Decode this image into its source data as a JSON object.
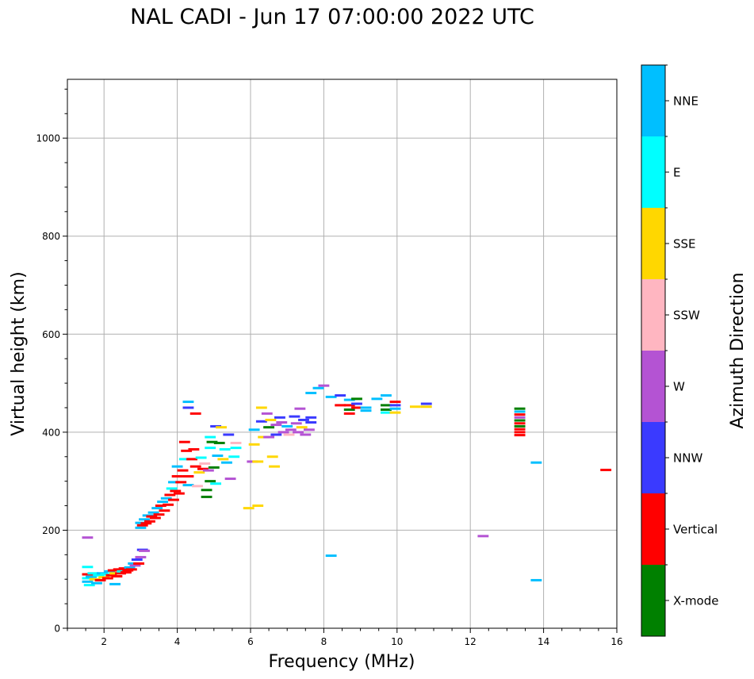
{
  "chart_data": {
    "type": "scatter",
    "title": "NAL CADI - Jun 17 07:00:00 2022 UTC",
    "xlabel": "Frequency (MHz)",
    "ylabel": "Virtual height (km)",
    "xlim": [
      1,
      16
    ],
    "ylim": [
      0,
      1120
    ],
    "xticks": [
      2,
      4,
      6,
      8,
      10,
      12,
      14,
      16
    ],
    "yticks": [
      0,
      200,
      400,
      600,
      800,
      1000
    ],
    "grid": true,
    "colorbar": {
      "label": "Azimuth Direction",
      "categories": [
        {
          "name": "X-mode",
          "color": "#008000"
        },
        {
          "name": "Vertical",
          "color": "#ff0000"
        },
        {
          "name": "NNW",
          "color": "#3a3aff"
        },
        {
          "name": "W",
          "color": "#b453d3"
        },
        {
          "name": "SSW",
          "color": "#ffb6c1"
        },
        {
          "name": "SSE",
          "color": "#ffd700"
        },
        {
          "name": "E",
          "color": "#00ffff"
        },
        {
          "name": "NNE",
          "color": "#00bfff"
        }
      ]
    },
    "points": [
      {
        "f": 1.55,
        "h": 185,
        "c": "W"
      },
      {
        "f": 1.55,
        "h": 125,
        "c": "E"
      },
      {
        "f": 1.55,
        "h": 110,
        "c": "Vertical"
      },
      {
        "f": 1.55,
        "h": 102,
        "c": "E"
      },
      {
        "f": 1.55,
        "h": 95,
        "c": "NNE"
      },
      {
        "f": 1.6,
        "h": 88,
        "c": "E"
      },
      {
        "f": 1.65,
        "h": 105,
        "c": "NNE"
      },
      {
        "f": 1.7,
        "h": 112,
        "c": "E"
      },
      {
        "f": 1.75,
        "h": 100,
        "c": "SSE"
      },
      {
        "f": 1.8,
        "h": 92,
        "c": "NNE"
      },
      {
        "f": 1.85,
        "h": 108,
        "c": "E"
      },
      {
        "f": 1.9,
        "h": 98,
        "c": "Vertical"
      },
      {
        "f": 1.95,
        "h": 112,
        "c": "NNE"
      },
      {
        "f": 2.0,
        "h": 104,
        "c": "SSE"
      },
      {
        "f": 2.05,
        "h": 110,
        "c": "E"
      },
      {
        "f": 2.1,
        "h": 102,
        "c": "Vertical"
      },
      {
        "f": 2.15,
        "h": 116,
        "c": "NNE"
      },
      {
        "f": 2.2,
        "h": 108,
        "c": "Vertical"
      },
      {
        "f": 2.25,
        "h": 118,
        "c": "Vertical"
      },
      {
        "f": 2.3,
        "h": 112,
        "c": "SSE"
      },
      {
        "f": 2.3,
        "h": 90,
        "c": "NNE"
      },
      {
        "f": 2.35,
        "h": 106,
        "c": "Vertical"
      },
      {
        "f": 2.4,
        "h": 120,
        "c": "Vertical"
      },
      {
        "f": 2.45,
        "h": 112,
        "c": "Vertical"
      },
      {
        "f": 2.5,
        "h": 116,
        "c": "E"
      },
      {
        "f": 2.55,
        "h": 122,
        "c": "Vertical"
      },
      {
        "f": 2.6,
        "h": 114,
        "c": "Vertical"
      },
      {
        "f": 2.65,
        "h": 118,
        "c": "Vertical"
      },
      {
        "f": 2.7,
        "h": 124,
        "c": "NNE"
      },
      {
        "f": 2.75,
        "h": 120,
        "c": "Vertical"
      },
      {
        "f": 2.8,
        "h": 132,
        "c": "NNE"
      },
      {
        "f": 2.85,
        "h": 128,
        "c": "W"
      },
      {
        "f": 2.9,
        "h": 140,
        "c": "NNW"
      },
      {
        "f": 2.95,
        "h": 132,
        "c": "Vertical"
      },
      {
        "f": 3.0,
        "h": 145,
        "c": "W"
      },
      {
        "f": 3.05,
        "h": 160,
        "c": "NNW"
      },
      {
        "f": 3.1,
        "h": 158,
        "c": "W"
      },
      {
        "f": 3.0,
        "h": 205,
        "c": "NNE"
      },
      {
        "f": 3.0,
        "h": 215,
        "c": "NNE"
      },
      {
        "f": 3.05,
        "h": 210,
        "c": "Vertical"
      },
      {
        "f": 3.1,
        "h": 222,
        "c": "NNE"
      },
      {
        "f": 3.15,
        "h": 214,
        "c": "Vertical"
      },
      {
        "f": 3.2,
        "h": 230,
        "c": "NNE"
      },
      {
        "f": 3.25,
        "h": 218,
        "c": "Vertical"
      },
      {
        "f": 3.3,
        "h": 228,
        "c": "Vertical"
      },
      {
        "f": 3.35,
        "h": 236,
        "c": "NNE"
      },
      {
        "f": 3.4,
        "h": 225,
        "c": "Vertical"
      },
      {
        "f": 3.45,
        "h": 245,
        "c": "NNE"
      },
      {
        "f": 3.5,
        "h": 232,
        "c": "Vertical"
      },
      {
        "f": 3.55,
        "h": 250,
        "c": "Vertical"
      },
      {
        "f": 3.6,
        "h": 258,
        "c": "NNE"
      },
      {
        "f": 3.65,
        "h": 240,
        "c": "Vertical"
      },
      {
        "f": 3.7,
        "h": 265,
        "c": "NNE"
      },
      {
        "f": 3.75,
        "h": 252,
        "c": "Vertical"
      },
      {
        "f": 3.8,
        "h": 272,
        "c": "Vertical"
      },
      {
        "f": 3.85,
        "h": 285,
        "c": "E"
      },
      {
        "f": 3.9,
        "h": 262,
        "c": "Vertical"
      },
      {
        "f": 3.9,
        "h": 298,
        "c": "NNE"
      },
      {
        "f": 3.95,
        "h": 280,
        "c": "Vertical"
      },
      {
        "f": 4.0,
        "h": 310,
        "c": "Vertical"
      },
      {
        "f": 4.0,
        "h": 330,
        "c": "NNE"
      },
      {
        "f": 4.05,
        "h": 275,
        "c": "Vertical"
      },
      {
        "f": 4.1,
        "h": 298,
        "c": "Vertical"
      },
      {
        "f": 4.15,
        "h": 322,
        "c": "Vertical"
      },
      {
        "f": 4.2,
        "h": 345,
        "c": "E"
      },
      {
        "f": 4.2,
        "h": 380,
        "c": "Vertical"
      },
      {
        "f": 4.25,
        "h": 362,
        "c": "Vertical"
      },
      {
        "f": 4.3,
        "h": 292,
        "c": "NNE"
      },
      {
        "f": 4.3,
        "h": 310,
        "c": "Vertical"
      },
      {
        "f": 4.3,
        "h": 462,
        "c": "NNE"
      },
      {
        "f": 4.3,
        "h": 450,
        "c": "NNW"
      },
      {
        "f": 4.4,
        "h": 345,
        "c": "Vertical"
      },
      {
        "f": 4.45,
        "h": 365,
        "c": "Vertical"
      },
      {
        "f": 4.5,
        "h": 330,
        "c": "Vertical"
      },
      {
        "f": 4.5,
        "h": 438,
        "c": "Vertical"
      },
      {
        "f": 4.55,
        "h": 290,
        "c": "SSW"
      },
      {
        "f": 4.6,
        "h": 318,
        "c": "SSE"
      },
      {
        "f": 4.65,
        "h": 348,
        "c": "E"
      },
      {
        "f": 4.7,
        "h": 325,
        "c": "Vertical"
      },
      {
        "f": 4.75,
        "h": 336,
        "c": "SSW"
      },
      {
        "f": 4.8,
        "h": 282,
        "c": "X-mode"
      },
      {
        "f": 4.8,
        "h": 268,
        "c": "X-mode"
      },
      {
        "f": 4.85,
        "h": 322,
        "c": "W"
      },
      {
        "f": 4.9,
        "h": 300,
        "c": "X-mode"
      },
      {
        "f": 4.9,
        "h": 368,
        "c": "E"
      },
      {
        "f": 4.9,
        "h": 390,
        "c": "E"
      },
      {
        "f": 4.95,
        "h": 380,
        "c": "X-mode"
      },
      {
        "f": 5.0,
        "h": 328,
        "c": "X-mode"
      },
      {
        "f": 5.05,
        "h": 295,
        "c": "E"
      },
      {
        "f": 5.05,
        "h": 412,
        "c": "NNW"
      },
      {
        "f": 5.1,
        "h": 352,
        "c": "NNE"
      },
      {
        "f": 5.15,
        "h": 378,
        "c": "X-mode"
      },
      {
        "f": 5.2,
        "h": 410,
        "c": "SSE"
      },
      {
        "f": 5.25,
        "h": 345,
        "c": "SSE"
      },
      {
        "f": 5.3,
        "h": 365,
        "c": "E"
      },
      {
        "f": 5.35,
        "h": 338,
        "c": "NNE"
      },
      {
        "f": 5.4,
        "h": 395,
        "c": "NNW"
      },
      {
        "f": 5.45,
        "h": 305,
        "c": "W"
      },
      {
        "f": 5.55,
        "h": 350,
        "c": "E"
      },
      {
        "f": 5.6,
        "h": 368,
        "c": "E"
      },
      {
        "f": 5.6,
        "h": 378,
        "c": "SSW"
      },
      {
        "f": 5.95,
        "h": 245,
        "c": "SSE"
      },
      {
        "f": 6.05,
        "h": 340,
        "c": "W"
      },
      {
        "f": 6.1,
        "h": 405,
        "c": "NNE"
      },
      {
        "f": 6.1,
        "h": 375,
        "c": "SSE"
      },
      {
        "f": 6.2,
        "h": 250,
        "c": "SSE"
      },
      {
        "f": 6.2,
        "h": 340,
        "c": "SSE"
      },
      {
        "f": 6.3,
        "h": 450,
        "c": "SSE"
      },
      {
        "f": 6.3,
        "h": 422,
        "c": "NNW"
      },
      {
        "f": 6.35,
        "h": 390,
        "c": "SSE"
      },
      {
        "f": 6.45,
        "h": 438,
        "c": "W"
      },
      {
        "f": 6.5,
        "h": 410,
        "c": "X-mode"
      },
      {
        "f": 6.5,
        "h": 390,
        "c": "W"
      },
      {
        "f": 6.55,
        "h": 425,
        "c": "SSE"
      },
      {
        "f": 6.6,
        "h": 350,
        "c": "SSE"
      },
      {
        "f": 6.65,
        "h": 330,
        "c": "SSE"
      },
      {
        "f": 6.7,
        "h": 415,
        "c": "W"
      },
      {
        "f": 6.7,
        "h": 395,
        "c": "NNW"
      },
      {
        "f": 6.8,
        "h": 430,
        "c": "NNW"
      },
      {
        "f": 6.85,
        "h": 420,
        "c": "W"
      },
      {
        "f": 6.9,
        "h": 400,
        "c": "W"
      },
      {
        "f": 7.0,
        "h": 412,
        "c": "NNE"
      },
      {
        "f": 7.05,
        "h": 395,
        "c": "SSW"
      },
      {
        "f": 7.1,
        "h": 405,
        "c": "W"
      },
      {
        "f": 7.2,
        "h": 432,
        "c": "NNW"
      },
      {
        "f": 7.25,
        "h": 418,
        "c": "W"
      },
      {
        "f": 7.3,
        "h": 400,
        "c": "W"
      },
      {
        "f": 7.35,
        "h": 448,
        "c": "W"
      },
      {
        "f": 7.4,
        "h": 410,
        "c": "SSE"
      },
      {
        "f": 7.45,
        "h": 425,
        "c": "NNW"
      },
      {
        "f": 7.5,
        "h": 395,
        "c": "W"
      },
      {
        "f": 7.6,
        "h": 405,
        "c": "W"
      },
      {
        "f": 7.65,
        "h": 430,
        "c": "NNW"
      },
      {
        "f": 7.65,
        "h": 420,
        "c": "NNW"
      },
      {
        "f": 7.65,
        "h": 480,
        "c": "NNE"
      },
      {
        "f": 7.85,
        "h": 490,
        "c": "NNE"
      },
      {
        "f": 8.0,
        "h": 495,
        "c": "W"
      },
      {
        "f": 8.2,
        "h": 472,
        "c": "NNE"
      },
      {
        "f": 8.2,
        "h": 148,
        "c": "NNE"
      },
      {
        "f": 8.45,
        "h": 475,
        "c": "NNW"
      },
      {
        "f": 8.45,
        "h": 455,
        "c": "Vertical"
      },
      {
        "f": 8.7,
        "h": 466,
        "c": "NNE"
      },
      {
        "f": 8.7,
        "h": 455,
        "c": "Vertical"
      },
      {
        "f": 8.7,
        "h": 446,
        "c": "X-mode"
      },
      {
        "f": 8.7,
        "h": 438,
        "c": "Vertical"
      },
      {
        "f": 8.9,
        "h": 468,
        "c": "X-mode"
      },
      {
        "f": 8.9,
        "h": 458,
        "c": "NNW"
      },
      {
        "f": 8.9,
        "h": 450,
        "c": "Vertical"
      },
      {
        "f": 9.15,
        "h": 450,
        "c": "NNE"
      },
      {
        "f": 9.15,
        "h": 444,
        "c": "NNE"
      },
      {
        "f": 9.45,
        "h": 468,
        "c": "NNE"
      },
      {
        "f": 9.7,
        "h": 475,
        "c": "NNE"
      },
      {
        "f": 9.7,
        "h": 455,
        "c": "X-mode"
      },
      {
        "f": 9.7,
        "h": 446,
        "c": "X-mode"
      },
      {
        "f": 9.7,
        "h": 440,
        "c": "E"
      },
      {
        "f": 9.95,
        "h": 462,
        "c": "Vertical"
      },
      {
        "f": 9.95,
        "h": 455,
        "c": "NNW"
      },
      {
        "f": 9.95,
        "h": 448,
        "c": "NNE"
      },
      {
        "f": 9.95,
        "h": 440,
        "c": "SSE"
      },
      {
        "f": 10.5,
        "h": 452,
        "c": "SSE"
      },
      {
        "f": 10.8,
        "h": 458,
        "c": "NNW"
      },
      {
        "f": 10.8,
        "h": 452,
        "c": "SSE"
      },
      {
        "f": 12.35,
        "h": 188,
        "c": "W"
      },
      {
        "f": 13.35,
        "h": 448,
        "c": "X-mode"
      },
      {
        "f": 13.35,
        "h": 442,
        "c": "NNE"
      },
      {
        "f": 13.35,
        "h": 436,
        "c": "Vertical"
      },
      {
        "f": 13.35,
        "h": 430,
        "c": "W"
      },
      {
        "f": 13.35,
        "h": 424,
        "c": "X-mode"
      },
      {
        "f": 13.35,
        "h": 418,
        "c": "Vertical"
      },
      {
        "f": 13.35,
        "h": 412,
        "c": "X-mode"
      },
      {
        "f": 13.35,
        "h": 406,
        "c": "Vertical"
      },
      {
        "f": 13.35,
        "h": 400,
        "c": "Vertical"
      },
      {
        "f": 13.35,
        "h": 394,
        "c": "Vertical"
      },
      {
        "f": 13.8,
        "h": 338,
        "c": "NNE"
      },
      {
        "f": 13.8,
        "h": 98,
        "c": "NNE"
      },
      {
        "f": 15.7,
        "h": 323,
        "c": "Vertical"
      }
    ]
  }
}
